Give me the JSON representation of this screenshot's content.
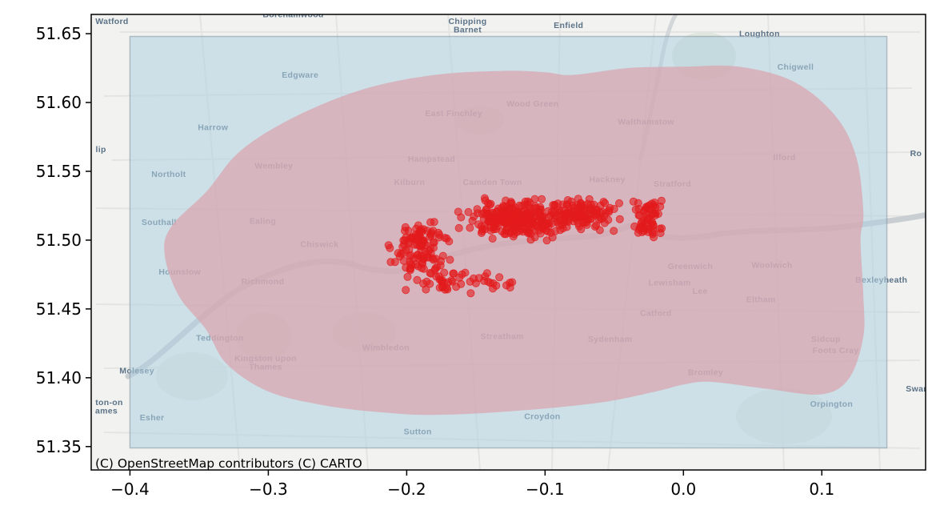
{
  "chart_data": {
    "type": "scatter",
    "title": "",
    "xlabel": "",
    "ylabel": "",
    "xlim": [
      -0.428,
      0.175
    ],
    "ylim": [
      51.333,
      51.664
    ],
    "x_ticks": [
      "−0.4",
      "−0.3",
      "−0.2",
      "−0.1",
      "0.0",
      "0.1"
    ],
    "x_tick_values": [
      -0.4,
      -0.3,
      -0.2,
      -0.1,
      0.0,
      0.1
    ],
    "y_ticks": [
      "51.35",
      "51.40",
      "51.45",
      "51.50",
      "51.55",
      "51.60",
      "51.65"
    ],
    "y_tick_values": [
      51.35,
      51.4,
      51.45,
      51.5,
      51.55,
      51.6,
      51.65
    ],
    "grid": false,
    "legend": false,
    "bounding_box": {
      "x": [
        -0.4,
        0.147
      ],
      "y": [
        51.349,
        51.648
      ],
      "color": "#aecfe0"
    },
    "buffer_polygon": {
      "color": "#d9a3ad",
      "points": [
        [
          -0.18,
          51.373
        ],
        [
          -0.12,
          51.376
        ],
        [
          -0.06,
          51.382
        ],
        [
          -0.02,
          51.39
        ],
        [
          0.0,
          51.395
        ],
        [
          0.02,
          51.397
        ],
        [
          0.06,
          51.392
        ],
        [
          0.1,
          51.388
        ],
        [
          0.12,
          51.4
        ],
        [
          0.13,
          51.43
        ],
        [
          0.13,
          51.46
        ],
        [
          0.128,
          51.5
        ],
        [
          0.13,
          51.52
        ],
        [
          0.125,
          51.56
        ],
        [
          0.11,
          51.59
        ],
        [
          0.08,
          51.615
        ],
        [
          0.04,
          51.626
        ],
        [
          0.0,
          51.626
        ],
        [
          -0.04,
          51.625
        ],
        [
          -0.08,
          51.62
        ],
        [
          -0.1,
          51.622
        ],
        [
          -0.13,
          51.623
        ],
        [
          -0.18,
          51.62
        ],
        [
          -0.23,
          51.61
        ],
        [
          -0.28,
          51.59
        ],
        [
          -0.32,
          51.565
        ],
        [
          -0.345,
          51.535
        ],
        [
          -0.37,
          51.51
        ],
        [
          -0.375,
          51.49
        ],
        [
          -0.365,
          51.46
        ],
        [
          -0.345,
          51.435
        ],
        [
          -0.33,
          51.41
        ],
        [
          -0.3,
          51.39
        ],
        [
          -0.26,
          51.38
        ],
        [
          -0.22,
          51.375
        ]
      ]
    },
    "points": {
      "color": "#e31a1c",
      "description_count": 600,
      "x_range": [
        -0.235,
        -0.002
      ],
      "y_range": [
        51.453,
        51.55
      ]
    },
    "place_labels": [
      {
        "text": "Watford",
        "x": -0.413,
        "y": 51.657
      },
      {
        "text": "Borehamwood",
        "x": -0.282,
        "y": 51.662
      },
      {
        "text": "Chipping",
        "x": -0.156,
        "y": 51.657
      },
      {
        "text": "Barnet",
        "x": -0.156,
        "y": 51.651
      },
      {
        "text": "Enfield",
        "x": -0.083,
        "y": 51.654
      },
      {
        "text": "Loughton",
        "x": 0.055,
        "y": 51.648
      },
      {
        "text": "Chigwell",
        "x": 0.081,
        "y": 51.624
      },
      {
        "text": "Edgware",
        "x": -0.277,
        "y": 51.618
      },
      {
        "text": "Wood Green",
        "x": -0.109,
        "y": 51.597
      },
      {
        "text": "East Finchley",
        "x": -0.166,
        "y": 51.59
      },
      {
        "text": "Walthamstow",
        "x": -0.027,
        "y": 51.584
      },
      {
        "text": "Harrow",
        "x": -0.34,
        "y": 51.58
      },
      {
        "text": "Hampstead",
        "x": -0.182,
        "y": 51.557
      },
      {
        "text": "Ilford",
        "x": 0.073,
        "y": 51.558
      },
      {
        "text": "Wembley",
        "x": -0.296,
        "y": 51.552
      },
      {
        "text": "Northolt",
        "x": -0.372,
        "y": 51.546
      },
      {
        "text": "Kilburn",
        "x": -0.198,
        "y": 51.54
      },
      {
        "text": "Camden Town",
        "x": -0.138,
        "y": 51.54
      },
      {
        "text": "Hackney",
        "x": -0.055,
        "y": 51.542
      },
      {
        "text": "Stratford",
        "x": -0.008,
        "y": 51.539
      },
      {
        "text": "Southall",
        "x": -0.379,
        "y": 51.511
      },
      {
        "text": "Ealing",
        "x": -0.304,
        "y": 51.512
      },
      {
        "text": "Chiswick",
        "x": -0.263,
        "y": 51.495
      },
      {
        "text": "Greenwich",
        "x": 0.005,
        "y": 51.479
      },
      {
        "text": "Woolwich",
        "x": 0.064,
        "y": 51.48
      },
      {
        "text": "Hounslow",
        "x": -0.364,
        "y": 51.475
      },
      {
        "text": "Richmond",
        "x": -0.304,
        "y": 51.468
      },
      {
        "text": "Lewisham",
        "x": -0.01,
        "y": 51.467
      },
      {
        "text": "Lee",
        "x": 0.012,
        "y": 51.461
      },
      {
        "text": "Bexleyheath",
        "x": 0.143,
        "y": 51.469
      },
      {
        "text": "Eltham",
        "x": 0.056,
        "y": 51.455
      },
      {
        "text": "Catford",
        "x": -0.02,
        "y": 51.445
      },
      {
        "text": "Teddington",
        "x": -0.335,
        "y": 51.427
      },
      {
        "text": "Streatham",
        "x": -0.131,
        "y": 51.428
      },
      {
        "text": "Sydenham",
        "x": -0.053,
        "y": 51.426
      },
      {
        "text": "Sidcup",
        "x": 0.103,
        "y": 51.426
      },
      {
        "text": "Foots Cray",
        "x": 0.11,
        "y": 51.418
      },
      {
        "text": "Wimbledon",
        "x": -0.215,
        "y": 51.42
      },
      {
        "text": "Kingston upon",
        "x": -0.302,
        "y": 51.412
      },
      {
        "text": "Thames",
        "x": -0.302,
        "y": 51.406
      },
      {
        "text": "Molesey",
        "x": -0.395,
        "y": 51.403
      },
      {
        "text": "Bromley",
        "x": 0.016,
        "y": 51.402
      },
      {
        "text": "Orpington",
        "x": 0.107,
        "y": 51.379
      },
      {
        "text": "Esher",
        "x": -0.384,
        "y": 51.369
      },
      {
        "text": "Croydon",
        "x": -0.102,
        "y": 51.37
      },
      {
        "text": "Sutton",
        "x": -0.192,
        "y": 51.359
      },
      {
        "text": "lip",
        "x": -0.421,
        "y": 51.564
      },
      {
        "text": "Swan",
        "x": 0.169,
        "y": 51.39
      },
      {
        "text": "ton-on",
        "x": -0.415,
        "y": 51.38
      },
      {
        "text": "ames",
        "x": -0.417,
        "y": 51.374
      },
      {
        "text": "Ro",
        "x": 0.168,
        "y": 51.561
      }
    ],
    "attribution": "(C) OpenStreetMap contributors (C) CARTO"
  }
}
